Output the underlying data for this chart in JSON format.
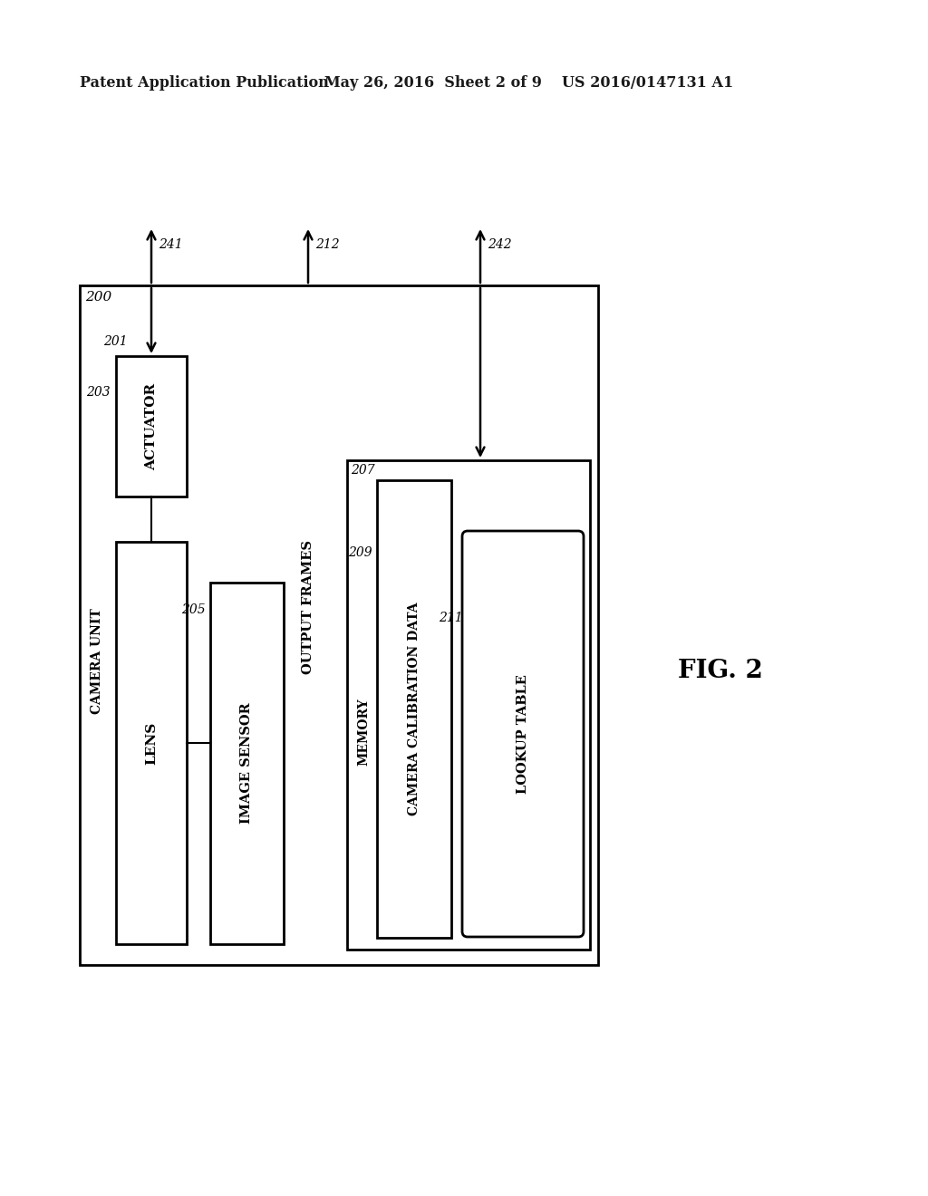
{
  "bg_color": "#ffffff",
  "header_left": "Patent Application Publication",
  "header_mid": "May 26, 2016  Sheet 2 of 9",
  "header_right": "US 2016/0147131 A1",
  "fig_label": "FIG. 2",
  "outer_box_label": "200",
  "camera_unit_label": "CAMERA UNIT",
  "camera_unit_ref": "201",
  "lens_label": "LENS",
  "actuator_label": "ACTUATOR",
  "actuator_ref": "203",
  "image_sensor_label": "IMAGE SENSOR",
  "image_sensor_ref": "205",
  "memory_box_label": "MEMORY",
  "memory_ref": "207",
  "cam_calib_label": "CAMERA CALIBRATION DATA",
  "cam_calib_ref": "209",
  "lookup_label": "LOOKUP TABLE",
  "lookup_ref": "211",
  "output_frames_label": "OUTPUT FRAMES",
  "arrow241_label": "241",
  "arrow212_label": "212",
  "arrow242_label": "242"
}
